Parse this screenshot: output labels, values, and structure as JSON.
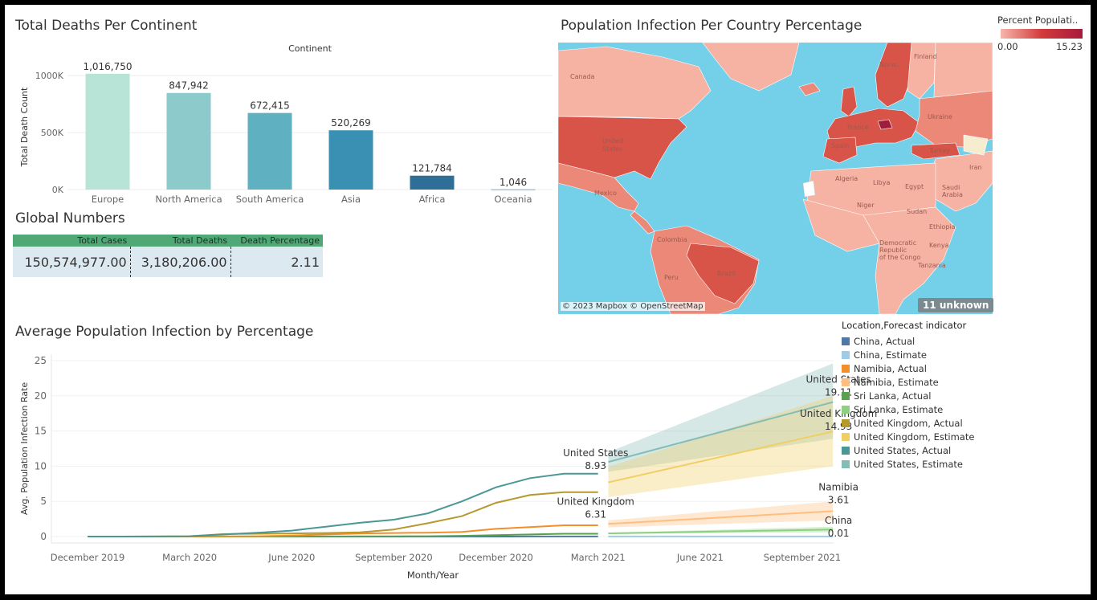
{
  "deaths_panel": {
    "title": "Total Deaths Per Continent"
  },
  "global_panel": {
    "title": "Global Numbers",
    "headers": [
      "Total Cases",
      "Total Deaths",
      "Death Percentage"
    ],
    "values": [
      "150,574,977.00",
      "3,180,206.00",
      "2.11"
    ]
  },
  "map_panel": {
    "title": "Population Infection Per Country Percentage",
    "attribution": "© 2023 Mapbox © OpenStreetMap",
    "unknown_badge": "11 unknown",
    "legend_title": "Percent Populati..",
    "legend_min": "0.00",
    "legend_max": "15.23",
    "labels": {
      "canada": "Canada",
      "us1": "United",
      "us2": "States",
      "mexico": "Mexico",
      "colombia": "Colombia",
      "brazil": "Brazil",
      "peru": "Peru",
      "spain": "Spain",
      "france": "France",
      "ukraine": "Ukraine",
      "turkey": "Turkey",
      "iran": "Iran",
      "algeria": "Algeria",
      "libya": "Libya",
      "egypt": "Egypt",
      "saudi1": "Saudi",
      "saudi2": "Arabia",
      "sudan": "Sudan",
      "niger": "Niger",
      "ethiopia": "Ethiopia",
      "kenya": "Kenya",
      "tanzania": "Tanzania",
      "drc1": "Democratic",
      "drc2": "Republic",
      "drc3": "of the Congo",
      "finland": "Finland",
      "norway": "Norw.."
    },
    "colors": {
      "water": "#74cfe9",
      "light": "#f6b2a3",
      "medium": "#ec8878",
      "dark": "#d95448",
      "darker": "#c8353c",
      "darkest": "#9f1d3a"
    }
  },
  "avg_panel": {
    "title": "Average Population Infection by Percentage"
  },
  "legend": {
    "title": "Location,Forecast indicator",
    "items": [
      {
        "label": "China, Actual",
        "color": "#4e79a7"
      },
      {
        "label": "China, Estimate",
        "color": "#a0cbe8"
      },
      {
        "label": "Namibia, Actual",
        "color": "#f28e2b"
      },
      {
        "label": "Namibia, Estimate",
        "color": "#ffbe7d"
      },
      {
        "label": "Sri Lanka, Actual",
        "color": "#59a14f"
      },
      {
        "label": "Sri Lanka, Estimate",
        "color": "#8cd17d"
      },
      {
        "label": "United Kingdom, Actual",
        "color": "#b6992d"
      },
      {
        "label": "United Kingdom, Estimate",
        "color": "#f1ce63"
      },
      {
        "label": "United States, Actual",
        "color": "#499894"
      },
      {
        "label": "United States, Estimate",
        "color": "#86bcb6"
      }
    ]
  },
  "chart_data": [
    {
      "type": "bar",
      "title": "Total Deaths Per Continent",
      "header": "Continent",
      "ylabel": "Total Death Count",
      "categories": [
        "Europe",
        "North America",
        "South America",
        "Asia",
        "Africa",
        "Oceania"
      ],
      "values": [
        1016750,
        847942,
        672415,
        520269,
        121784,
        1046
      ],
      "value_labels": [
        "1,016,750",
        "847,942",
        "672,415",
        "520,269",
        "121,784",
        "1,046"
      ],
      "colors": [
        "#b8e3d7",
        "#8dcacb",
        "#5fb0c0",
        "#3a90b2",
        "#2e6e97",
        "#27517b"
      ],
      "yticks": [
        0,
        500000,
        1000000
      ],
      "ytick_labels": [
        "0K",
        "500K",
        "1000K"
      ],
      "ylim": [
        0,
        1100000
      ]
    },
    {
      "type": "line",
      "title": "Average Population Infection by Percentage",
      "xlabel": "Month/Year",
      "ylabel": "Avg. Population Infection Rate",
      "ylim": [
        0,
        25
      ],
      "yticks": [
        0,
        5,
        10,
        15,
        20,
        25
      ],
      "xticks": [
        "December 2019",
        "March 2020",
        "June 2020",
        "September 2020",
        "December 2020",
        "March 2021",
        "June 2021",
        "September 2021"
      ],
      "xtick_months": [
        0,
        3,
        6,
        9,
        12,
        15,
        18,
        21
      ],
      "actual_months": [
        0,
        1,
        2,
        3,
        4,
        5,
        6,
        7,
        8,
        9,
        10,
        11,
        12,
        13,
        14,
        15
      ],
      "series": [
        {
          "name": "United States, Actual",
          "color": "#499894",
          "values": [
            0,
            0,
            0.01,
            0.05,
            0.3,
            0.55,
            0.85,
            1.4,
            1.95,
            2.4,
            3.3,
            5.0,
            7.0,
            8.3,
            8.93,
            8.93
          ]
        },
        {
          "name": "United Kingdom, Actual",
          "color": "#b6992d",
          "values": [
            0,
            0,
            0.01,
            0.05,
            0.35,
            0.4,
            0.45,
            0.5,
            0.6,
            1.0,
            1.9,
            2.9,
            4.8,
            5.9,
            6.31,
            6.31
          ]
        },
        {
          "name": "Namibia, Actual",
          "color": "#f28e2b",
          "values": [
            0,
            0,
            0,
            0,
            0.02,
            0.05,
            0.15,
            0.3,
            0.45,
            0.5,
            0.55,
            0.65,
            1.1,
            1.35,
            1.6,
            1.6
          ]
        },
        {
          "name": "Sri Lanka, Actual",
          "color": "#59a14f",
          "values": [
            0,
            0,
            0,
            0,
            0,
            0,
            0.01,
            0.01,
            0.02,
            0.03,
            0.05,
            0.1,
            0.2,
            0.3,
            0.4,
            0.4
          ]
        },
        {
          "name": "China, Actual",
          "color": "#4e79a7",
          "values": [
            0,
            0,
            0,
            0,
            0,
            0,
            0,
            0,
            0,
            0,
            0,
            0,
            0,
            0.01,
            0.01,
            0.01
          ]
        }
      ],
      "estimates": [
        {
          "name": "United States, Estimate",
          "color": "#86bcb6",
          "band": "#86bcb6",
          "start": 10.6,
          "end": 19.11,
          "low_start": 9.2,
          "low_end": 13.9,
          "high_start": 12.0,
          "high_end": 24.6
        },
        {
          "name": "United Kingdom, Estimate",
          "color": "#f1ce63",
          "band": "#f1ce63",
          "start": 7.7,
          "end": 14.93,
          "low_start": 5.6,
          "low_end": 10.0,
          "high_start": 9.9,
          "high_end": 20.0
        },
        {
          "name": "Namibia, Estimate",
          "color": "#ffbe7d",
          "band": "#ffbe7d",
          "start": 1.8,
          "end": 3.61,
          "low_start": 1.3,
          "low_end": 2.3,
          "high_start": 2.3,
          "high_end": 5.0
        },
        {
          "name": "Sri Lanka, Estimate",
          "color": "#8cd17d",
          "band": "#8cd17d",
          "start": 0.45,
          "end": 1.0,
          "low_start": 0.35,
          "low_end": 0.6,
          "high_start": 0.55,
          "high_end": 1.4
        },
        {
          "name": "China, Estimate",
          "color": "#a0cbe8",
          "band": "#a0cbe8",
          "start": 0.01,
          "end": 0.01,
          "low_start": 0,
          "low_end": 0,
          "high_start": 0.02,
          "high_end": 0.02
        }
      ],
      "estimate_months": [
        15.3,
        21.9
      ],
      "annotations": [
        {
          "name": "United States",
          "value": "8.93"
        },
        {
          "name": "United Kingdom",
          "value": "6.31"
        },
        {
          "name": "United States",
          "value": "19.11"
        },
        {
          "name": "United Kingdom",
          "value": "14.93"
        },
        {
          "name": "Namibia",
          "value": "3.61"
        },
        {
          "name": "China",
          "value": "0.01"
        }
      ]
    }
  ]
}
